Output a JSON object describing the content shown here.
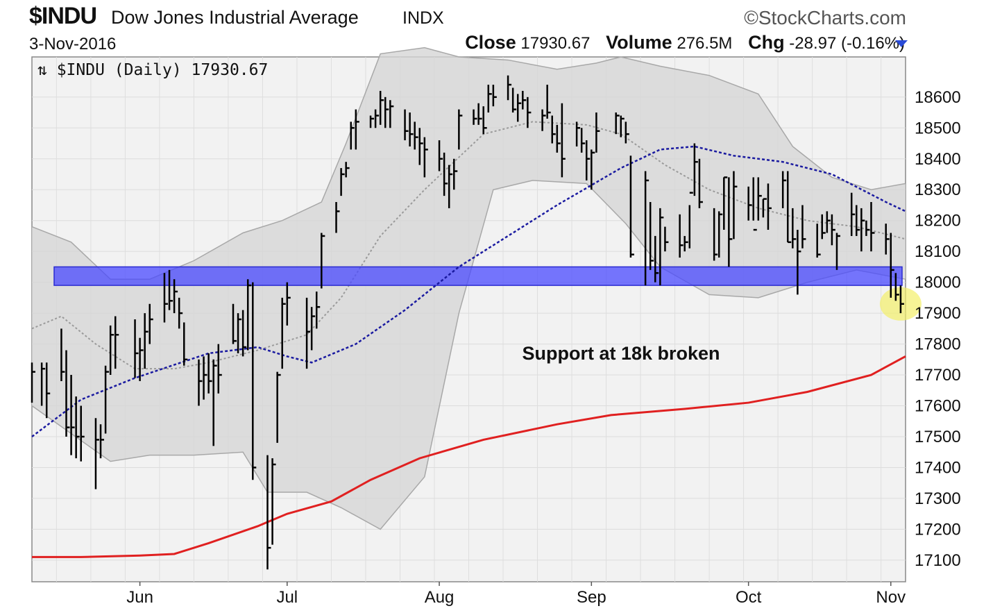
{
  "header": {
    "symbol": "$INDU",
    "name": "Dow Jones Industrial Average",
    "exchange": "INDX",
    "brand": "©StockCharts.com",
    "date": "3-Nov-2016",
    "close_label": "Close",
    "close_value": "17930.67",
    "volume_label": "Volume",
    "volume_value": "276.5M",
    "chg_label": "Chg",
    "chg_value": "-28.97 (-0.16%)"
  },
  "chart_data": {
    "type": "line",
    "legend_text": "$INDU (Daily) 17930.67",
    "annotation": "Support at 18k broken",
    "ylim": [
      17030,
      18730
    ],
    "yticks": [
      "18600",
      "18500",
      "18400",
      "18300",
      "18200",
      "18100",
      "18000",
      "17900",
      "17800",
      "17700",
      "17600",
      "17500",
      "17400",
      "17300",
      "17200",
      "17100"
    ],
    "xtick_labels": [
      "Jun",
      "Jul",
      "Aug",
      "Sep",
      "Oct",
      "Nov"
    ],
    "x_start": "2016-05-10",
    "x_end": "2016-11-04",
    "xticks": [
      "2016-06-01",
      "2016-07-01",
      "2016-08-01",
      "2016-09-01",
      "2016-10-03",
      "2016-11-01"
    ],
    "support_band": [
      17990,
      18050
    ],
    "colors": {
      "sma200": "#e02020",
      "sma50": "#1a1aa0",
      "band_fill": "#4a4aff",
      "bollinger": "#a8a8a8",
      "highlight": "#f4f06a"
    },
    "price_bars": [
      [
        "2016-05-10",
        17740,
        17610,
        17710
      ],
      [
        "2016-05-12",
        17740,
        17600,
        17720
      ],
      [
        "2016-05-13",
        17740,
        17560,
        17640
      ],
      [
        "2016-05-16",
        17850,
        17680,
        17710
      ],
      [
        "2016-05-17",
        17780,
        17500,
        17530
      ],
      [
        "2016-05-18",
        17700,
        17440,
        17530
      ],
      [
        "2016-05-19",
        17630,
        17430,
        17500
      ],
      [
        "2016-05-20",
        17600,
        17420,
        17500
      ],
      [
        "2016-05-23",
        17560,
        17330,
        17490
      ],
      [
        "2016-05-24",
        17540,
        17430,
        17490
      ],
      [
        "2016-05-25",
        17730,
        17510,
        17710
      ],
      [
        "2016-05-26",
        17860,
        17700,
        17830
      ],
      [
        "2016-05-27",
        17890,
        17720,
        17830
      ],
      [
        "2016-05-31",
        17880,
        17690,
        17770
      ],
      [
        "2016-06-01",
        17820,
        17680,
        17780
      ],
      [
        "2016-06-02",
        17900,
        17720,
        17840
      ],
      [
        "2016-06-03",
        17930,
        17800,
        17880
      ],
      [
        "2016-06-06",
        18030,
        17870,
        17930
      ],
      [
        "2016-06-07",
        18040,
        17910,
        17940
      ],
      [
        "2016-06-08",
        18010,
        17900,
        17970
      ],
      [
        "2016-06-09",
        17950,
        17850,
        17900
      ],
      [
        "2016-06-10",
        17870,
        17730,
        17750
      ],
      [
        "2016-06-13",
        17750,
        17600,
        17680
      ],
      [
        "2016-06-14",
        17760,
        17620,
        17700
      ],
      [
        "2016-06-15",
        17770,
        17640,
        17680
      ],
      [
        "2016-06-16",
        17750,
        17470,
        17730
      ],
      [
        "2016-06-17",
        17800,
        17640,
        17700
      ],
      [
        "2016-06-20",
        17930,
        17800,
        17810
      ],
      [
        "2016-06-21",
        17900,
        17770,
        17880
      ],
      [
        "2016-06-22",
        17910,
        17760,
        17790
      ],
      [
        "2016-06-23",
        18010,
        17780,
        17990
      ],
      [
        "2016-06-24",
        18000,
        17360,
        17400
      ],
      [
        "2016-06-27",
        17440,
        17070,
        17140
      ],
      [
        "2016-06-28",
        17430,
        17150,
        17410
      ],
      [
        "2016-06-29",
        17710,
        17480,
        17700
      ],
      [
        "2016-06-30",
        17950,
        17720,
        17930
      ],
      [
        "2016-07-01",
        18000,
        17860,
        17950
      ],
      [
        "2016-07-05",
        17950,
        17720,
        17840
      ],
      [
        "2016-07-06",
        17920,
        17780,
        17890
      ],
      [
        "2016-07-07",
        17970,
        17850,
        17920
      ],
      [
        "2016-07-08",
        18160,
        17980,
        18150
      ],
      [
        "2016-07-11",
        18260,
        18160,
        18230
      ],
      [
        "2016-07-12",
        18370,
        18280,
        18350
      ],
      [
        "2016-07-13",
        18390,
        18340,
        18370
      ],
      [
        "2016-07-14",
        18520,
        18430,
        18500
      ],
      [
        "2016-07-15",
        18560,
        18430,
        18520
      ],
      [
        "2016-07-18",
        18540,
        18500,
        18530
      ],
      [
        "2016-07-19",
        18560,
        18500,
        18540
      ],
      [
        "2016-07-20",
        18620,
        18510,
        18590
      ],
      [
        "2016-07-21",
        18600,
        18500,
        18560
      ],
      [
        "2016-07-22",
        18590,
        18500,
        18570
      ],
      [
        "2016-07-25",
        18560,
        18460,
        18490
      ],
      [
        "2016-07-26",
        18550,
        18440,
        18480
      ],
      [
        "2016-07-27",
        18520,
        18430,
        18470
      ],
      [
        "2016-07-28",
        18500,
        18380,
        18450
      ],
      [
        "2016-07-29",
        18470,
        18340,
        18430
      ],
      [
        "2016-08-01",
        18460,
        18360,
        18400
      ],
      [
        "2016-08-02",
        18420,
        18280,
        18320
      ],
      [
        "2016-08-03",
        18380,
        18240,
        18350
      ],
      [
        "2016-08-04",
        18400,
        18300,
        18360
      ],
      [
        "2016-08-05",
        18560,
        18430,
        18540
      ],
      [
        "2016-08-08",
        18560,
        18510,
        18530
      ],
      [
        "2016-08-09",
        18580,
        18510,
        18530
      ],
      [
        "2016-08-10",
        18570,
        18480,
        18500
      ],
      [
        "2016-08-11",
        18640,
        18550,
        18610
      ],
      [
        "2016-08-12",
        18640,
        18570,
        18600
      ],
      [
        "2016-08-15",
        18670,
        18590,
        18640
      ],
      [
        "2016-08-16",
        18630,
        18550,
        18560
      ],
      [
        "2016-08-17",
        18610,
        18520,
        18580
      ],
      [
        "2016-08-18",
        18620,
        18560,
        18590
      ],
      [
        "2016-08-19",
        18600,
        18500,
        18550
      ],
      [
        "2016-08-22",
        18560,
        18490,
        18540
      ],
      [
        "2016-08-23",
        18640,
        18530,
        18550
      ],
      [
        "2016-08-24",
        18540,
        18450,
        18480
      ],
      [
        "2016-08-25",
        18510,
        18420,
        18450
      ],
      [
        "2016-08-26",
        18580,
        18340,
        18400
      ],
      [
        "2016-08-29",
        18520,
        18440,
        18500
      ],
      [
        "2016-08-30",
        18500,
        18420,
        18450
      ],
      [
        "2016-08-31",
        18460,
        18330,
        18400
      ],
      [
        "2016-09-01",
        18430,
        18300,
        18420
      ],
      [
        "2016-09-02",
        18550,
        18420,
        18490
      ],
      [
        "2016-09-06",
        18550,
        18480,
        18540
      ],
      [
        "2016-09-07",
        18540,
        18470,
        18530
      ],
      [
        "2016-09-08",
        18520,
        18450,
        18480
      ],
      [
        "2016-09-09",
        18410,
        18080,
        18090
      ],
      [
        "2016-09-12",
        18360,
        17990,
        18330
      ],
      [
        "2016-09-13",
        18260,
        18040,
        18070
      ],
      [
        "2016-09-14",
        18150,
        18000,
        18030
      ],
      [
        "2016-09-15",
        18240,
        17990,
        18210
      ],
      [
        "2016-09-16",
        18180,
        18100,
        18130
      ],
      [
        "2016-09-19",
        18220,
        18080,
        18120
      ],
      [
        "2016-09-20",
        18150,
        18100,
        18130
      ],
      [
        "2016-09-21",
        18250,
        18110,
        18290
      ],
      [
        "2016-09-22",
        18450,
        18280,
        18390
      ],
      [
        "2016-09-23",
        18400,
        18240,
        18260
      ],
      [
        "2016-09-26",
        18240,
        18070,
        18090
      ],
      [
        "2016-09-27",
        18230,
        18080,
        18220
      ],
      [
        "2016-09-28",
        18340,
        18170,
        18340
      ],
      [
        "2016-09-29",
        18340,
        18050,
        18140
      ],
      [
        "2016-09-30",
        18360,
        18140,
        18310
      ],
      [
        "2016-10-03",
        18310,
        18200,
        18250
      ],
      [
        "2016-10-04",
        18340,
        18200,
        18170
      ],
      [
        "2016-10-05",
        18340,
        18200,
        18280
      ],
      [
        "2016-10-06",
        18270,
        18210,
        18270
      ],
      [
        "2016-10-07",
        18320,
        18170,
        18240
      ],
      [
        "2016-10-10",
        18360,
        18240,
        18330
      ],
      [
        "2016-10-11",
        18360,
        18130,
        18130
      ],
      [
        "2016-10-12",
        18240,
        18110,
        18140
      ],
      [
        "2016-10-13",
        18170,
        17960,
        18100
      ],
      [
        "2016-10-14",
        18250,
        18110,
        18140
      ],
      [
        "2016-10-17",
        18190,
        18080,
        18090
      ],
      [
        "2016-10-18",
        18220,
        18140,
        18160
      ],
      [
        "2016-10-19",
        18230,
        18160,
        18200
      ],
      [
        "2016-10-20",
        18220,
        18120,
        18170
      ],
      [
        "2016-10-21",
        18160,
        18040,
        18150
      ],
      [
        "2016-10-24",
        18290,
        18150,
        18220
      ],
      [
        "2016-10-25",
        18250,
        18150,
        18170
      ],
      [
        "2016-10-26",
        18240,
        18100,
        18200
      ],
      [
        "2016-10-27",
        18200,
        18150,
        18170
      ],
      [
        "2016-10-28",
        18260,
        18100,
        18160
      ],
      [
        "2016-10-31",
        18190,
        18090,
        18140
      ],
      [
        "2016-11-01",
        18160,
        17950,
        18040
      ],
      [
        "2016-11-02",
        18030,
        17940,
        17960
      ],
      [
        "2016-11-03",
        17990,
        17900,
        17930
      ]
    ],
    "sma50": [
      [
        "2016-05-10",
        17500
      ],
      [
        "2016-05-20",
        17620
      ],
      [
        "2016-05-31",
        17690
      ],
      [
        "2016-06-15",
        17770
      ],
      [
        "2016-06-25",
        17790
      ],
      [
        "2016-07-01",
        17760
      ],
      [
        "2016-07-06",
        17740
      ],
      [
        "2016-07-15",
        17800
      ],
      [
        "2016-07-25",
        17910
      ],
      [
        "2016-08-05",
        18050
      ],
      [
        "2016-08-15",
        18150
      ],
      [
        "2016-08-25",
        18250
      ],
      [
        "2016-09-07",
        18370
      ],
      [
        "2016-09-15",
        18430
      ],
      [
        "2016-09-22",
        18440
      ],
      [
        "2016-09-30",
        18410
      ],
      [
        "2016-10-10",
        18390
      ],
      [
        "2016-10-20",
        18350
      ],
      [
        "2016-10-31",
        18260
      ],
      [
        "2016-11-04",
        18230
      ]
    ],
    "sma200": [
      [
        "2016-05-10",
        17110
      ],
      [
        "2016-05-20",
        17110
      ],
      [
        "2016-06-01",
        17115
      ],
      [
        "2016-06-08",
        17120
      ],
      [
        "2016-06-15",
        17155
      ],
      [
        "2016-06-25",
        17210
      ],
      [
        "2016-07-01",
        17250
      ],
      [
        "2016-07-10",
        17290
      ],
      [
        "2016-07-18",
        17360
      ],
      [
        "2016-07-28",
        17430
      ],
      [
        "2016-08-10",
        17490
      ],
      [
        "2016-08-25",
        17540
      ],
      [
        "2016-09-05",
        17570
      ],
      [
        "2016-09-20",
        17590
      ],
      [
        "2016-10-03",
        17610
      ],
      [
        "2016-10-15",
        17645
      ],
      [
        "2016-10-28",
        17700
      ],
      [
        "2016-11-04",
        17760
      ]
    ],
    "bb_mid": [
      [
        "2016-05-10",
        17850
      ],
      [
        "2016-05-16",
        17890
      ],
      [
        "2016-05-23",
        17800
      ],
      [
        "2016-05-31",
        17720
      ],
      [
        "2016-06-08",
        17720
      ],
      [
        "2016-06-15",
        17740
      ],
      [
        "2016-06-25",
        17780
      ],
      [
        "2016-07-05",
        17830
      ],
      [
        "2016-07-12",
        17950
      ],
      [
        "2016-07-20",
        18150
      ],
      [
        "2016-07-29",
        18300
      ],
      [
        "2016-08-10",
        18480
      ],
      [
        "2016-08-20",
        18520
      ],
      [
        "2016-08-31",
        18510
      ],
      [
        "2016-09-07",
        18480
      ],
      [
        "2016-09-16",
        18380
      ],
      [
        "2016-09-25",
        18300
      ],
      [
        "2016-10-05",
        18240
      ],
      [
        "2016-10-15",
        18200
      ],
      [
        "2016-10-25",
        18180
      ],
      [
        "2016-11-04",
        18140
      ]
    ],
    "bb_upper": [
      [
        "2016-05-10",
        18180
      ],
      [
        "2016-05-18",
        18130
      ],
      [
        "2016-05-26",
        18010
      ],
      [
        "2016-06-03",
        18010
      ],
      [
        "2016-06-12",
        18070
      ],
      [
        "2016-06-22",
        18160
      ],
      [
        "2016-06-30",
        18200
      ],
      [
        "2016-07-08",
        18260
      ],
      [
        "2016-07-13",
        18450
      ],
      [
        "2016-07-20",
        18740
      ],
      [
        "2016-07-29",
        18760
      ],
      [
        "2016-08-05",
        18730
      ],
      [
        "2016-08-15",
        18720
      ],
      [
        "2016-08-25",
        18690
      ],
      [
        "2016-09-02",
        18710
      ],
      [
        "2016-09-07",
        18730
      ],
      [
        "2016-09-15",
        18700
      ],
      [
        "2016-09-25",
        18670
      ],
      [
        "2016-10-05",
        18610
      ],
      [
        "2016-10-12",
        18440
      ],
      [
        "2016-10-20",
        18340
      ],
      [
        "2016-10-28",
        18300
      ],
      [
        "2016-11-04",
        18320
      ]
    ],
    "bb_lower": [
      [
        "2016-05-10",
        17600
      ],
      [
        "2016-05-18",
        17510
      ],
      [
        "2016-05-26",
        17420
      ],
      [
        "2016-06-03",
        17440
      ],
      [
        "2016-06-12",
        17440
      ],
      [
        "2016-06-22",
        17450
      ],
      [
        "2016-06-27",
        17320
      ],
      [
        "2016-07-05",
        17320
      ],
      [
        "2016-07-12",
        17270
      ],
      [
        "2016-07-20",
        17200
      ],
      [
        "2016-07-29",
        17370
      ],
      [
        "2016-08-05",
        17900
      ],
      [
        "2016-08-12",
        18300
      ],
      [
        "2016-08-20",
        18330
      ],
      [
        "2016-08-31",
        18320
      ],
      [
        "2016-09-08",
        18190
      ],
      [
        "2016-09-15",
        18050
      ],
      [
        "2016-09-25",
        17960
      ],
      [
        "2016-10-05",
        17950
      ],
      [
        "2016-10-15",
        18000
      ],
      [
        "2016-10-25",
        18040
      ],
      [
        "2016-11-04",
        18010
      ]
    ]
  }
}
